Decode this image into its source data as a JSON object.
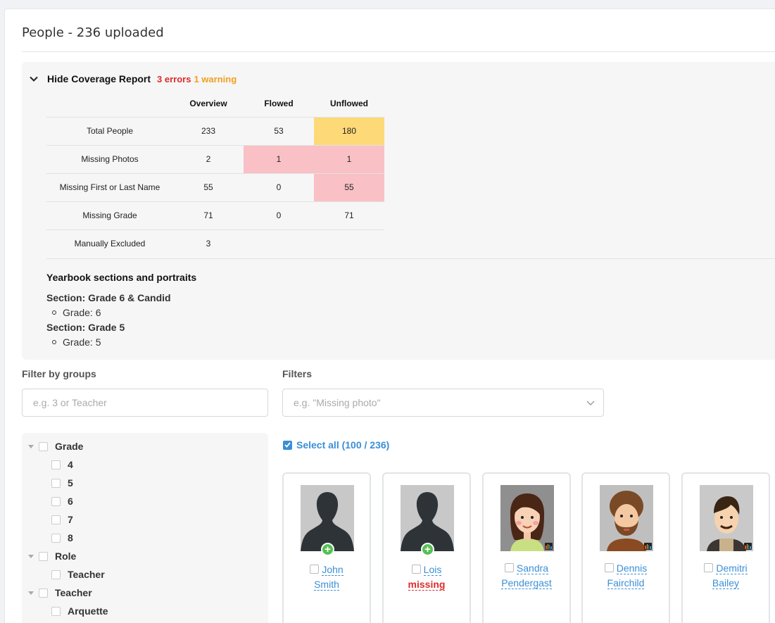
{
  "page": {
    "title": "People - 236 uploaded"
  },
  "coverage": {
    "toggle_label": "Hide Coverage Report",
    "errors": "3 errors",
    "warnings": "1 warning",
    "columns": [
      "Overview",
      "Flowed",
      "Unflowed"
    ],
    "rows": [
      {
        "label": "Total People",
        "values": [
          "233",
          "53",
          "180"
        ],
        "status": [
          "",
          "",
          "warning"
        ]
      },
      {
        "label": "Missing Photos",
        "values": [
          "2",
          "1",
          "1"
        ],
        "status": [
          "",
          "error",
          "error"
        ]
      },
      {
        "label": "Missing First or Last Name",
        "values": [
          "55",
          "0",
          "55"
        ],
        "status": [
          "",
          "",
          "error"
        ]
      },
      {
        "label": "Missing Grade",
        "values": [
          "71",
          "0",
          "71"
        ],
        "status": [
          "",
          "",
          ""
        ]
      },
      {
        "label": "Manually Excluded",
        "values": [
          "3",
          "",
          ""
        ],
        "status": [
          "",
          "",
          ""
        ]
      }
    ],
    "colors": {
      "warning": "#fdd977",
      "error": "#f9c0c6",
      "error_text": "#e02a2a",
      "warning_text": "#f0a020"
    },
    "sections_title": "Yearbook sections and portraits",
    "sections": [
      {
        "name": "Section: Grade 6 & Candid",
        "grade": "Grade: 6"
      },
      {
        "name": "Section: Grade 5",
        "grade": "Grade: 5"
      }
    ]
  },
  "filters": {
    "groups_label": "Filter by groups",
    "groups_placeholder": "e.g. 3 or Teacher",
    "filters_label": "Filters",
    "filters_placeholder": "e.g. \"Missing photo\""
  },
  "tree": {
    "groups": [
      {
        "label": "Grade",
        "children": [
          "4",
          "5",
          "6",
          "7",
          "8"
        ]
      },
      {
        "label": "Role",
        "children": [
          "Teacher"
        ]
      },
      {
        "label": "Teacher",
        "children": [
          "Arquette"
        ]
      }
    ]
  },
  "select_all": {
    "label": "Select all (100 / 236)",
    "checked": true
  },
  "people": [
    {
      "first": "John",
      "last": "Smith",
      "photo": "placeholder-silhouette",
      "last_missing": false
    },
    {
      "first": "Lois",
      "last": "missing",
      "photo": "placeholder-silhouette",
      "last_missing": true
    },
    {
      "first": "Sandra",
      "last": "Pendergast",
      "photo": "avatar-woman",
      "last_missing": false
    },
    {
      "first": "Dennis",
      "last": "Fairchild",
      "photo": "avatar-bearded-man",
      "last_missing": false
    },
    {
      "first": "Demitri",
      "last": "Bailey",
      "photo": "avatar-man",
      "last_missing": false
    }
  ],
  "accent_color": "#3a8fd6"
}
